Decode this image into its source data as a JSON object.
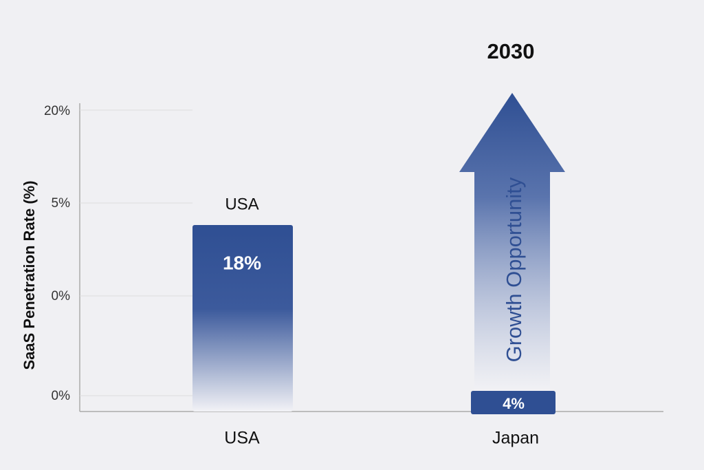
{
  "title": "2030",
  "y_axis_label": "SaaS Penetration Rate (%)",
  "y_tick_labels": [
    "20%",
    "5%",
    "0%",
    "0%"
  ],
  "bars": [
    {
      "category": "USA",
      "top_label": "USA",
      "value_label": "18%"
    },
    {
      "category": "Japan",
      "value_label": "4%",
      "arrow_label": "Growth Opportunity"
    }
  ]
}
